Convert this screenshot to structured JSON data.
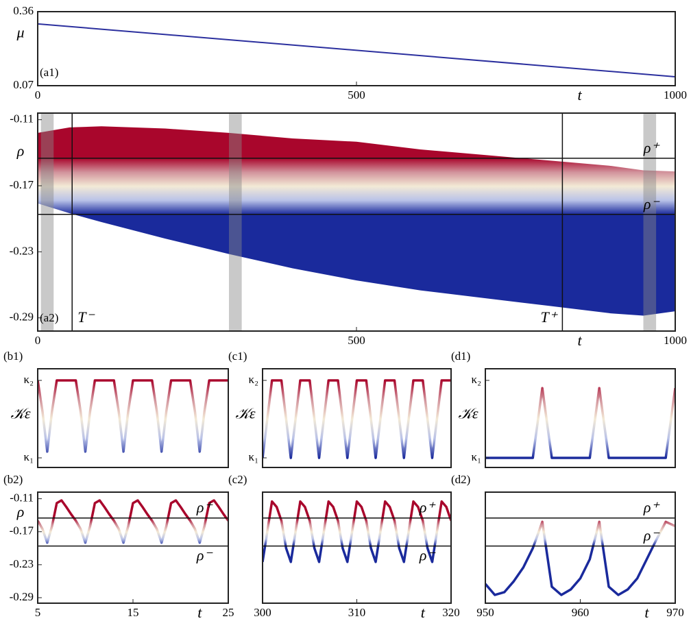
{
  "chart_data": [
    {
      "type": "line",
      "panel_label": "(a1)",
      "ylabel": "μ",
      "xlabel": "t",
      "x": [
        0,
        1000
      ],
      "values": [
        0.312,
        0.105
      ],
      "color": "#2b2f9e",
      "xlim": [
        0,
        1000
      ],
      "xticks": [
        0,
        500,
        1000
      ],
      "ylim": [
        0.07,
        0.36
      ],
      "yticks": [
        0.07,
        0.36
      ]
    },
    {
      "type": "band",
      "panel_label": "(a2)",
      "ylabel": "ρ",
      "xlabel": "t",
      "x": [
        0,
        50,
        100,
        200,
        300,
        400,
        500,
        600,
        700,
        800,
        900,
        950,
        1000
      ],
      "upper": [
        -0.122,
        -0.117,
        -0.116,
        -0.118,
        -0.122,
        -0.127,
        -0.13,
        -0.137,
        -0.142,
        -0.147,
        -0.152,
        -0.156,
        -0.157
      ],
      "lower": [
        -0.186,
        -0.195,
        -0.203,
        -0.218,
        -0.232,
        -0.245,
        -0.256,
        -0.265,
        -0.272,
        -0.279,
        -0.286,
        -0.288,
        -0.284
      ],
      "colormap": [
        "#1a2a9c",
        "#b9c2e8",
        "#f3ead6",
        "#d2939c",
        "#a9062c"
      ],
      "hlines": [
        {
          "value": -0.145,
          "label": "ρ⁺"
        },
        {
          "value": -0.196,
          "label": "ρ⁻"
        }
      ],
      "vlines": [
        {
          "value": 54,
          "label": "T⁻"
        },
        {
          "value": 823,
          "label": "T⁺"
        }
      ],
      "spans": [
        [
          5,
          25
        ],
        [
          300,
          320
        ],
        [
          950,
          970
        ]
      ],
      "xlim": [
        0,
        1000
      ],
      "xticks": [
        0,
        500,
        1000
      ],
      "ylim": [
        -0.302,
        -0.104
      ],
      "yticks": [
        -0.11,
        -0.17,
        -0.23,
        -0.29
      ]
    },
    {
      "type": "line",
      "panel_label": "(b1)",
      "ylabel": "𝒦ε",
      "x": [
        5,
        5.5,
        6,
        6.5,
        7,
        7.5,
        8,
        8.5,
        9,
        9.5,
        10,
        10.5,
        11,
        11.5,
        12,
        12.5,
        13,
        13.5,
        14,
        14.5,
        15,
        15.5,
        16,
        16.5,
        17,
        17.5,
        18,
        18.5,
        19,
        19.5,
        20,
        20.5,
        21,
        21.5,
        22,
        22.5,
        23,
        23.5,
        24,
        24.5,
        25
      ],
      "values": [
        1,
        0.6,
        0.08,
        0.6,
        1,
        1,
        1,
        1,
        1,
        0.6,
        0.08,
        0.6,
        1,
        1,
        1,
        1,
        1,
        0.6,
        0.08,
        0.6,
        1,
        1,
        1,
        1,
        1,
        0.6,
        0.08,
        0.6,
        1,
        1,
        1,
        1,
        1,
        0.6,
        0.08,
        0.6,
        1,
        1,
        1,
        1,
        1
      ],
      "colormap": [
        "#1a2a9c",
        "#b9c2e8",
        "#f3ead6",
        "#d2939c",
        "#a9062c"
      ],
      "xlim": [
        5,
        25
      ],
      "ylim": [
        -0.124,
        1.15
      ],
      "yticks": [
        {
          "value": 0,
          "label": "κ₁"
        },
        {
          "value": 1,
          "label": "κ₂"
        }
      ]
    },
    {
      "type": "line",
      "panel_label": "(c1)",
      "ylabel": "𝒦ε",
      "x": [
        300,
        300.5,
        301,
        301.5,
        302,
        302.5,
        303,
        303.5,
        304,
        304.5,
        305,
        305.5,
        306,
        306.5,
        307,
        307.5,
        308,
        308.5,
        309,
        309.5,
        310,
        310.5,
        311,
        311.5,
        312,
        312.5,
        313,
        313.5,
        314,
        314.5,
        315,
        315.5,
        316,
        316.5,
        317,
        317.5,
        318,
        318.5,
        319,
        319.5,
        320
      ],
      "values": [
        0,
        0.5,
        1,
        1,
        1,
        0.5,
        0,
        0.5,
        1,
        1,
        1,
        0.5,
        0,
        0.5,
        1,
        1,
        1,
        0.5,
        0,
        0.5,
        1,
        1,
        1,
        0.5,
        0,
        0.5,
        1,
        1,
        1,
        0.5,
        0,
        0.5,
        1,
        1,
        1,
        0.5,
        0,
        0.5,
        1,
        1,
        1
      ],
      "colormap": [
        "#1a2a9c",
        "#b9c2e8",
        "#f3ead6",
        "#d2939c",
        "#a9062c"
      ],
      "xlim": [
        300,
        320
      ],
      "ylim": [
        -0.124,
        1.15
      ],
      "yticks": [
        {
          "value": 0,
          "label": "κ₁"
        },
        {
          "value": 1,
          "label": "κ₂"
        }
      ]
    },
    {
      "type": "line",
      "panel_label": "(d1)",
      "ylabel": "𝒦ε",
      "x": [
        950,
        951,
        952,
        953,
        954,
        955,
        956,
        957,
        958,
        959,
        960,
        961,
        962,
        963,
        964,
        965,
        966,
        967,
        968,
        969,
        970
      ],
      "values": [
        0,
        0,
        0,
        0,
        0,
        0,
        0.9,
        0,
        0,
        0,
        0,
        0,
        0.9,
        0,
        0,
        0,
        0,
        0,
        0,
        0,
        0.9
      ],
      "colormap": [
        "#1a2a9c",
        "#b9c2e8",
        "#f3ead6",
        "#d2939c",
        "#a9062c"
      ],
      "xlim": [
        950,
        970
      ],
      "ylim": [
        -0.124,
        1.15
      ],
      "yticks": [
        {
          "value": 0,
          "label": "κ₁"
        },
        {
          "value": 1,
          "label": "κ₂"
        }
      ]
    },
    {
      "type": "line",
      "panel_label": "(b2)",
      "ylabel": "ρ",
      "xlabel": "t",
      "x": [
        5,
        5.5,
        6,
        6.5,
        7,
        7.5,
        8,
        8.5,
        9,
        9.5,
        10,
        10.5,
        11,
        11.5,
        12,
        12.5,
        13,
        13.5,
        14,
        14.5,
        15,
        15.5,
        16,
        16.5,
        17,
        17.5,
        18,
        18.5,
        19,
        19.5,
        20,
        20.5,
        21,
        21.5,
        22,
        22.5,
        23,
        23.5,
        24,
        24.5,
        25
      ],
      "values": [
        -0.15,
        -0.165,
        -0.19,
        -0.16,
        -0.118,
        -0.113,
        -0.125,
        -0.138,
        -0.15,
        -0.165,
        -0.19,
        -0.16,
        -0.118,
        -0.113,
        -0.125,
        -0.138,
        -0.15,
        -0.165,
        -0.19,
        -0.16,
        -0.118,
        -0.113,
        -0.125,
        -0.138,
        -0.15,
        -0.165,
        -0.19,
        -0.16,
        -0.118,
        -0.113,
        -0.125,
        -0.138,
        -0.15,
        -0.165,
        -0.19,
        -0.16,
        -0.118,
        -0.113,
        -0.125,
        -0.138,
        -0.15
      ],
      "colormap": [
        "#1a2a9c",
        "#b9c2e8",
        "#f3ead6",
        "#d2939c",
        "#a9062c"
      ],
      "hlines": [
        {
          "value": -0.145,
          "label": "ρ⁺"
        },
        {
          "value": -0.196,
          "label": "ρ⁻"
        }
      ],
      "xlim": [
        5,
        25
      ],
      "xticks": [
        5,
        15,
        25
      ],
      "ylim": [
        -0.3,
        -0.098
      ],
      "yticks": [
        -0.11,
        -0.17,
        -0.23,
        -0.29
      ]
    },
    {
      "type": "line",
      "panel_label": "(c2)",
      "xlabel": "t",
      "x": [
        300,
        300.5,
        301,
        301.5,
        302,
        302.5,
        303,
        303.5,
        304,
        304.5,
        305,
        305.5,
        306,
        306.5,
        307,
        307.5,
        308,
        308.5,
        309,
        309.5,
        310,
        310.5,
        311,
        311.5,
        312,
        312.5,
        313,
        313.5,
        314,
        314.5,
        315,
        315.5,
        316,
        316.5,
        317,
        317.5,
        318,
        318.5,
        319,
        319.5,
        320
      ],
      "values": [
        -0.225,
        -0.17,
        -0.115,
        -0.125,
        -0.15,
        -0.2,
        -0.225,
        -0.17,
        -0.115,
        -0.125,
        -0.15,
        -0.2,
        -0.225,
        -0.17,
        -0.115,
        -0.125,
        -0.15,
        -0.2,
        -0.225,
        -0.17,
        -0.115,
        -0.125,
        -0.15,
        -0.2,
        -0.225,
        -0.17,
        -0.115,
        -0.125,
        -0.15,
        -0.2,
        -0.225,
        -0.17,
        -0.115,
        -0.125,
        -0.15,
        -0.2,
        -0.225,
        -0.17,
        -0.115,
        -0.125,
        -0.15
      ],
      "colormap": [
        "#1a2a9c",
        "#b9c2e8",
        "#f3ead6",
        "#d2939c",
        "#a9062c"
      ],
      "hlines": [
        {
          "value": -0.145,
          "label": "ρ⁺"
        },
        {
          "value": -0.196,
          "label": "ρ⁻"
        }
      ],
      "xlim": [
        300,
        320
      ],
      "xticks": [
        300,
        310,
        320
      ],
      "ylim": [
        -0.3,
        -0.098
      ]
    },
    {
      "type": "line",
      "panel_label": "(d2)",
      "xlabel": "t",
      "x": [
        950,
        951,
        952,
        953,
        954,
        955,
        956,
        957,
        958,
        959,
        960,
        961,
        962,
        963,
        964,
        965,
        966,
        967,
        968,
        969,
        970
      ],
      "values": [
        -0.265,
        -0.285,
        -0.28,
        -0.26,
        -0.235,
        -0.2,
        -0.152,
        -0.27,
        -0.285,
        -0.275,
        -0.255,
        -0.22,
        -0.152,
        -0.27,
        -0.285,
        -0.275,
        -0.255,
        -0.22,
        -0.185,
        -0.152,
        -0.16
      ],
      "colormap": [
        "#1a2a9c",
        "#b9c2e8",
        "#f3ead6",
        "#d2939c",
        "#a9062c"
      ],
      "hlines": [
        {
          "value": -0.145,
          "label": "ρ⁺"
        },
        {
          "value": -0.196,
          "label": "ρ⁻"
        }
      ],
      "xlim": [
        950,
        970
      ],
      "xticks": [
        950,
        960,
        970
      ],
      "ylim": [
        -0.3,
        -0.098
      ]
    }
  ]
}
